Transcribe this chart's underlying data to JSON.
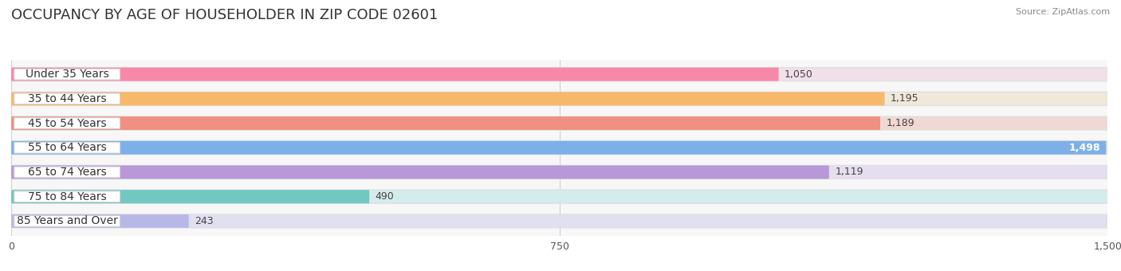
{
  "title": "OCCUPANCY BY AGE OF HOUSEHOLDER IN ZIP CODE 02601",
  "source": "Source: ZipAtlas.com",
  "categories": [
    "Under 35 Years",
    "35 to 44 Years",
    "45 to 54 Years",
    "55 to 64 Years",
    "65 to 74 Years",
    "75 to 84 Years",
    "85 Years and Over"
  ],
  "values": [
    1050,
    1195,
    1189,
    1498,
    1119,
    490,
    243
  ],
  "bar_colors": [
    "#F888AA",
    "#F8B86C",
    "#F09080",
    "#7EB0E8",
    "#B898D8",
    "#70C8C0",
    "#B8B8E8"
  ],
  "bar_bg_colors": [
    "#F0E0E8",
    "#F0E8D8",
    "#F0D8D4",
    "#DDE8F4",
    "#E4DFF0",
    "#D4ECEC",
    "#E0E0F0"
  ],
  "xlim": [
    0,
    1500
  ],
  "xticks": [
    0,
    750,
    1500
  ],
  "background_color": "#ffffff",
  "plot_bg_color": "#f7f7f7",
  "title_fontsize": 13,
  "label_fontsize": 10,
  "value_fontsize": 9
}
